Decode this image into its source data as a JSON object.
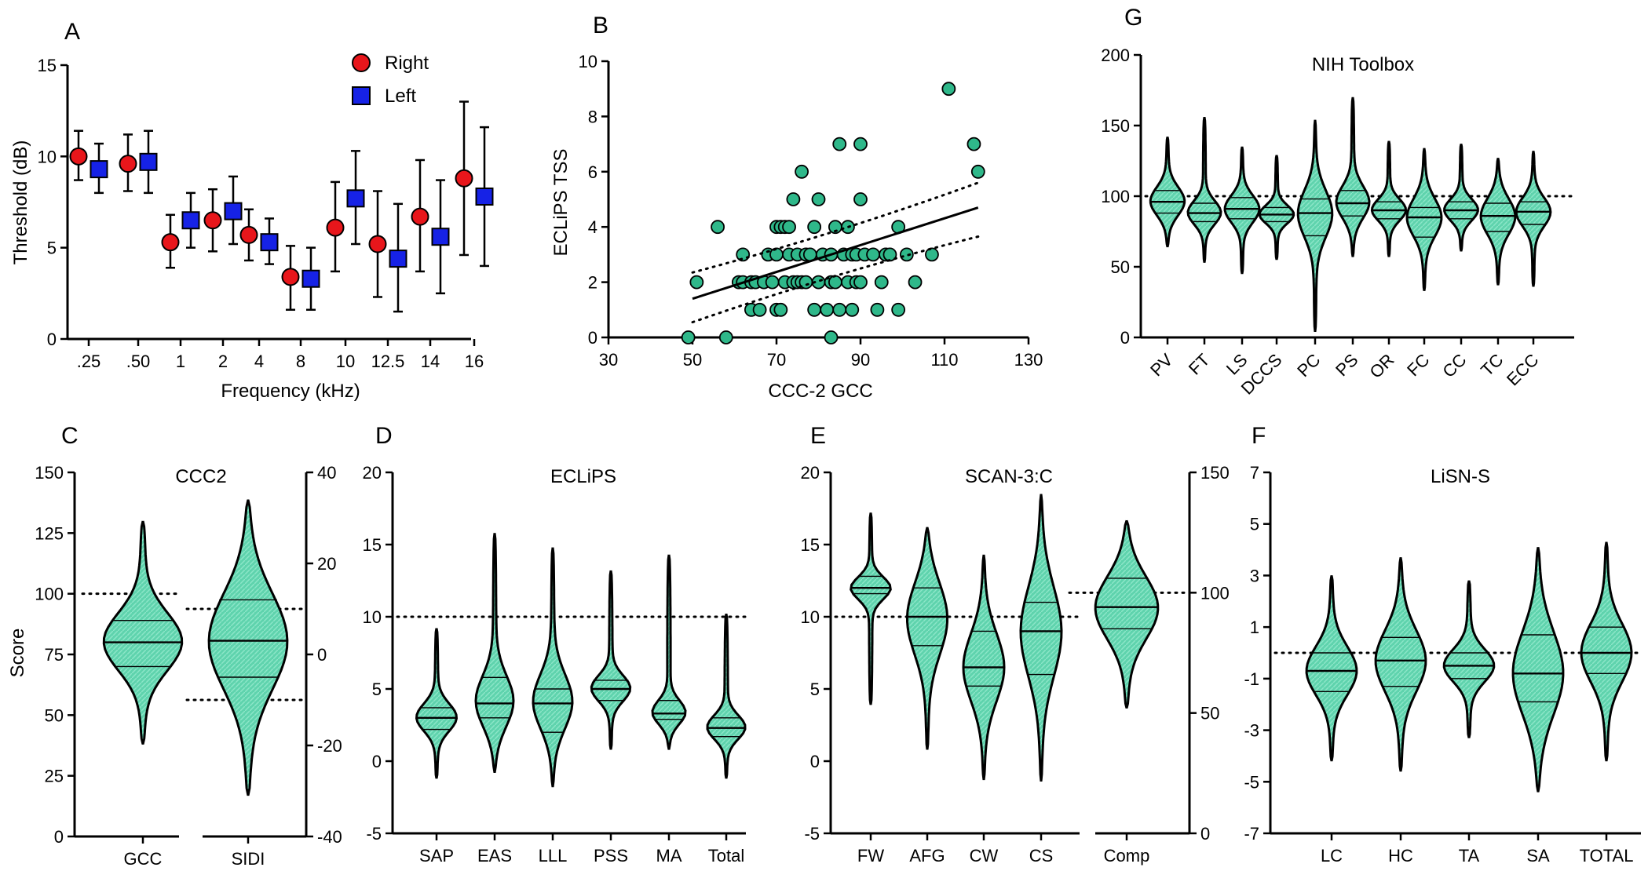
{
  "colors": {
    "green_fill": "#5fd3ad",
    "green_point": "#2fb88a",
    "red": "#e8161b",
    "blue": "#1622e6"
  },
  "chart_data": [
    {
      "panel": "A",
      "type": "scatter",
      "title": "",
      "xlabel": "Frequency (kHz)",
      "ylabel": "Threshold (dB)",
      "ylim": [
        0,
        15
      ],
      "yticks": [
        "0",
        "5",
        "10",
        "15"
      ],
      "categories": [
        ".25",
        ".50",
        "1",
        "2",
        "4",
        "8",
        "10",
        "12.5",
        "14",
        "16"
      ],
      "legend": {
        "position": "top-right"
      },
      "series": [
        {
          "name": "Right",
          "marker": "circle",
          "color": "#e8161b",
          "values": [
            10.0,
            9.6,
            5.3,
            6.5,
            5.7,
            3.4,
            6.1,
            5.2,
            6.7,
            8.8
          ],
          "err_low": [
            8.7,
            8.1,
            3.9,
            4.8,
            4.3,
            1.6,
            3.7,
            2.3,
            3.7,
            4.6
          ],
          "err_high": [
            11.4,
            11.2,
            6.8,
            8.2,
            7.1,
            5.1,
            8.6,
            8.1,
            9.8,
            13.0
          ]
        },
        {
          "name": "Left",
          "marker": "square",
          "color": "#1622e6",
          "values": [
            9.3,
            9.7,
            6.5,
            7.0,
            5.3,
            3.3,
            7.7,
            4.4,
            5.6,
            7.8
          ],
          "err_low": [
            8.0,
            8.0,
            5.0,
            5.2,
            4.1,
            1.6,
            5.2,
            1.5,
            2.5,
            4.0
          ],
          "err_high": [
            10.7,
            11.4,
            8.0,
            8.9,
            6.6,
            5.0,
            10.3,
            7.4,
            8.7,
            11.6
          ]
        }
      ]
    },
    {
      "panel": "B",
      "type": "scatter",
      "title": "",
      "xlabel": "CCC-2 GCC",
      "ylabel": "ECLiPS TSS",
      "xlim": [
        30,
        130
      ],
      "ylim": [
        0,
        10
      ],
      "xticks": [
        "30",
        "50",
        "70",
        "90",
        "110",
        "130"
      ],
      "yticks": [
        "0",
        "2",
        "4",
        "6",
        "8",
        "10"
      ],
      "points": [
        [
          49,
          0
        ],
        [
          58,
          0
        ],
        [
          83,
          0
        ],
        [
          51,
          2
        ],
        [
          56,
          4
        ],
        [
          61,
          2
        ],
        [
          62,
          2
        ],
        [
          62,
          3
        ],
        [
          64,
          1
        ],
        [
          64,
          2
        ],
        [
          65,
          2
        ],
        [
          66,
          1
        ],
        [
          67,
          2
        ],
        [
          68,
          3
        ],
        [
          69,
          2
        ],
        [
          70,
          4
        ],
        [
          70,
          1
        ],
        [
          70,
          3
        ],
        [
          71,
          1
        ],
        [
          71,
          4
        ],
        [
          72,
          2
        ],
        [
          72,
          4
        ],
        [
          73,
          4
        ],
        [
          73,
          3
        ],
        [
          74,
          5
        ],
        [
          74,
          2
        ],
        [
          75,
          2
        ],
        [
          75,
          3
        ],
        [
          76,
          2
        ],
        [
          76,
          6
        ],
        [
          77,
          3
        ],
        [
          77,
          2
        ],
        [
          78,
          3
        ],
        [
          79,
          4
        ],
        [
          79,
          1
        ],
        [
          80,
          2
        ],
        [
          80,
          5
        ],
        [
          81,
          3
        ],
        [
          82,
          1
        ],
        [
          83,
          2
        ],
        [
          83,
          3
        ],
        [
          84,
          2
        ],
        [
          84,
          4
        ],
        [
          85,
          1
        ],
        [
          85,
          7
        ],
        [
          86,
          3
        ],
        [
          87,
          2
        ],
        [
          87,
          4
        ],
        [
          88,
          1
        ],
        [
          88,
          3
        ],
        [
          89,
          2
        ],
        [
          89,
          3
        ],
        [
          90,
          7
        ],
        [
          90,
          5
        ],
        [
          90,
          2
        ],
        [
          91,
          3
        ],
        [
          93,
          3
        ],
        [
          94,
          1
        ],
        [
          95,
          2
        ],
        [
          96,
          3
        ],
        [
          97,
          3
        ],
        [
          99,
          1
        ],
        [
          99,
          4
        ],
        [
          101,
          3
        ],
        [
          103,
          2
        ],
        [
          107,
          3
        ],
        [
          111,
          9
        ],
        [
          117,
          7
        ],
        [
          118,
          6
        ]
      ],
      "fit": {
        "x": [
          50,
          118
        ],
        "y": [
          1.4,
          4.7
        ]
      },
      "ci_upper": {
        "x": [
          50,
          118
        ],
        "y": [
          2.35,
          5.6
        ]
      },
      "ci_lower": {
        "x": [
          50,
          118
        ],
        "y": [
          0.55,
          3.65
        ]
      }
    },
    {
      "panel": "G",
      "type": "violin",
      "title": "NIH Toolbox",
      "ylim": [
        0,
        200
      ],
      "yticks": [
        "0",
        "50",
        "100",
        "150",
        "200"
      ],
      "reference": 100,
      "categories": [
        "PV",
        "FT",
        "LS",
        "DCCS",
        "PC",
        "PS",
        "OR",
        "FC",
        "CC",
        "TC",
        "ECC"
      ],
      "violins": [
        {
          "min": 64,
          "max": 142,
          "q1": 88,
          "median": 96,
          "q3": 104
        },
        {
          "min": 53,
          "max": 156,
          "q1": 82,
          "median": 88,
          "q3": 95
        },
        {
          "min": 45,
          "max": 135,
          "q1": 84,
          "median": 91,
          "q3": 99
        },
        {
          "min": 55,
          "max": 129,
          "q1": 82,
          "median": 87,
          "q3": 92
        },
        {
          "min": 4,
          "max": 154,
          "q1": 72,
          "median": 88,
          "q3": 98
        },
        {
          "min": 57,
          "max": 170,
          "q1": 86,
          "median": 95,
          "q3": 104
        },
        {
          "min": 57,
          "max": 139,
          "q1": 84,
          "median": 90,
          "q3": 96
        },
        {
          "min": 33,
          "max": 134,
          "q1": 71,
          "median": 85,
          "q3": 92
        },
        {
          "min": 61,
          "max": 137,
          "q1": 84,
          "median": 90,
          "q3": 96
        },
        {
          "min": 37,
          "max": 127,
          "q1": 75,
          "median": 86,
          "q3": 95
        },
        {
          "min": 36,
          "max": 132,
          "q1": 80,
          "median": 89,
          "q3": 96
        }
      ]
    },
    {
      "panel": "C",
      "type": "violin",
      "title": "CCC2",
      "ylabel": "Score",
      "ylim": [
        0,
        150
      ],
      "yticks": [
        "0",
        "25",
        "50",
        "75",
        "100",
        "125",
        "150"
      ],
      "y2lim": [
        -40,
        40
      ],
      "y2ticks": [
        "-40",
        "-20",
        "0",
        "20",
        "40"
      ],
      "categories": [
        "GCC",
        "SIDI"
      ],
      "reference": {
        "GCC": 100,
        "SIDI": [
          10,
          -10
        ]
      },
      "violins": [
        {
          "axis": "left",
          "min": 38,
          "max": 130,
          "q1": 70,
          "median": 80,
          "q3": 89
        },
        {
          "axis": "right",
          "min": -31,
          "max": 34,
          "q1": -5,
          "median": 3,
          "q3": 12
        }
      ]
    },
    {
      "panel": "D",
      "type": "violin",
      "title": "ECLiPS",
      "ylim": [
        -5,
        20
      ],
      "yticks": [
        "-5",
        "0",
        "5",
        "10",
        "15",
        "20"
      ],
      "reference": 10,
      "categories": [
        "SAP",
        "EAS",
        "LLL",
        "PSS",
        "MA",
        "Total"
      ],
      "violins": [
        {
          "min": -1.2,
          "max": 9.2,
          "q1": 2.2,
          "median": 3.0,
          "q3": 3.7
        },
        {
          "min": -0.8,
          "max": 15.8,
          "q1": 3.0,
          "median": 4.0,
          "q3": 5.8
        },
        {
          "min": -1.8,
          "max": 14.8,
          "q1": 2.0,
          "median": 4.0,
          "q3": 5.0
        },
        {
          "min": 0.8,
          "max": 13.2,
          "q1": 4.2,
          "median": 5.0,
          "q3": 5.6
        },
        {
          "min": 0.8,
          "max": 14.3,
          "q1": 2.9,
          "median": 3.3,
          "q3": 4.2
        },
        {
          "min": -1.2,
          "max": 10.2,
          "q1": 1.7,
          "median": 2.3,
          "q3": 3.0
        }
      ]
    },
    {
      "panel": "E",
      "type": "violin",
      "title": "SCAN-3:C",
      "ylim": [
        -5,
        20
      ],
      "yticks": [
        "-5",
        "0",
        "5",
        "10",
        "15",
        "20"
      ],
      "y2lim": [
        0,
        150
      ],
      "y2ticks": [
        "0",
        "50",
        "100",
        "150"
      ],
      "reference": {
        "left": 10,
        "right": 100
      },
      "categories": [
        "FW",
        "AFG",
        "CW",
        "CS",
        "Comp"
      ],
      "violins": [
        {
          "axis": "left",
          "min": 3.9,
          "max": 17.2,
          "q1": 11.6,
          "median": 12.0,
          "q3": 12.8
        },
        {
          "axis": "left",
          "min": 0.8,
          "max": 16.2,
          "q1": 8.0,
          "median": 10.0,
          "q3": 12.0
        },
        {
          "axis": "left",
          "min": -1.3,
          "max": 14.3,
          "q1": 5.2,
          "median": 6.5,
          "q3": 9.0
        },
        {
          "axis": "left",
          "min": -1.4,
          "max": 18.5,
          "q1": 6.0,
          "median": 9.0,
          "q3": 11.0
        },
        {
          "axis": "right",
          "min": 52,
          "max": 130,
          "q1": 85,
          "median": 94,
          "q3": 106
        }
      ]
    },
    {
      "panel": "F",
      "type": "violin",
      "title": "LiSN-S",
      "ylim": [
        -7,
        7
      ],
      "yticks": [
        "-7",
        "-5",
        "-3",
        "-1",
        "1",
        "3",
        "5",
        "7"
      ],
      "reference": 0,
      "categories": [
        "LC",
        "HC",
        "TA",
        "SA",
        "TOTAL"
      ],
      "violins": [
        {
          "min": -4.2,
          "max": 3.0,
          "q1": -1.5,
          "median": -0.7,
          "q3": 0.0
        },
        {
          "min": -4.6,
          "max": 3.7,
          "q1": -1.3,
          "median": -0.3,
          "q3": 0.6
        },
        {
          "min": -3.3,
          "max": 2.8,
          "q1": -1.0,
          "median": -0.5,
          "q3": 0.0
        },
        {
          "min": -5.4,
          "max": 4.1,
          "q1": -1.9,
          "median": -0.8,
          "q3": 0.7
        },
        {
          "min": -4.2,
          "max": 4.3,
          "q1": -0.8,
          "median": 0.0,
          "q3": 1.0
        }
      ]
    }
  ]
}
